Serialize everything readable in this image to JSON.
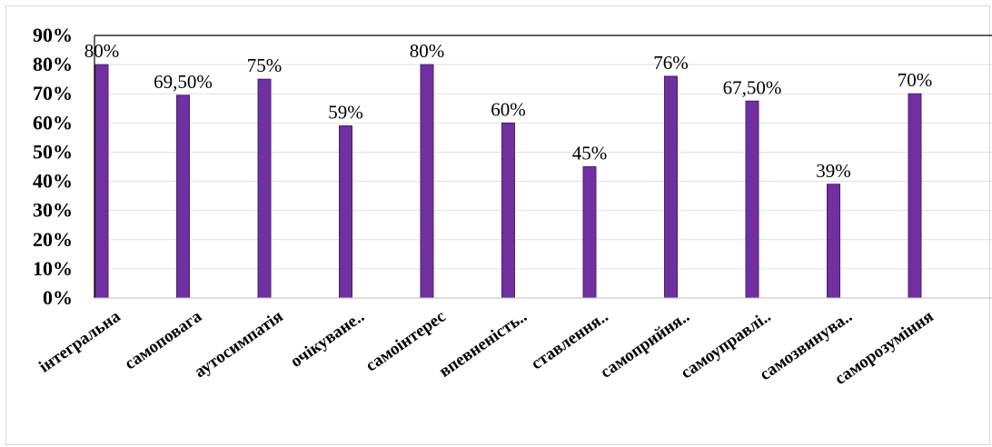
{
  "chart_data": {
    "type": "bar",
    "categories": [
      "інтегральна",
      "самоповага",
      "аутосимпатія",
      "очікуване..",
      "самоінтерес",
      "впевненість..",
      "ставлення..",
      "самоприйня..",
      "самоуправлі..",
      "самозвинува..",
      "саморозуміння"
    ],
    "values": [
      80,
      69.5,
      75,
      59,
      80,
      60,
      45,
      76,
      67.5,
      39,
      70
    ],
    "data_labels": [
      "80%",
      "69,50%",
      "75%",
      "59%",
      "80%",
      "60%",
      "45%",
      "76%",
      "67,50%",
      "39%",
      "70%"
    ],
    "y_tick_labels": [
      "0%",
      "10%",
      "20%",
      "30%",
      "40%",
      "50%",
      "60%",
      "70%",
      "80%",
      "90%"
    ],
    "ylim": [
      0,
      90
    ],
    "grid": true,
    "legend": "none",
    "colors": {
      "bar": "#7030a0",
      "bar_edge": "#4b1f70",
      "grid": "#e0e0e0",
      "axis": "#000000"
    }
  }
}
